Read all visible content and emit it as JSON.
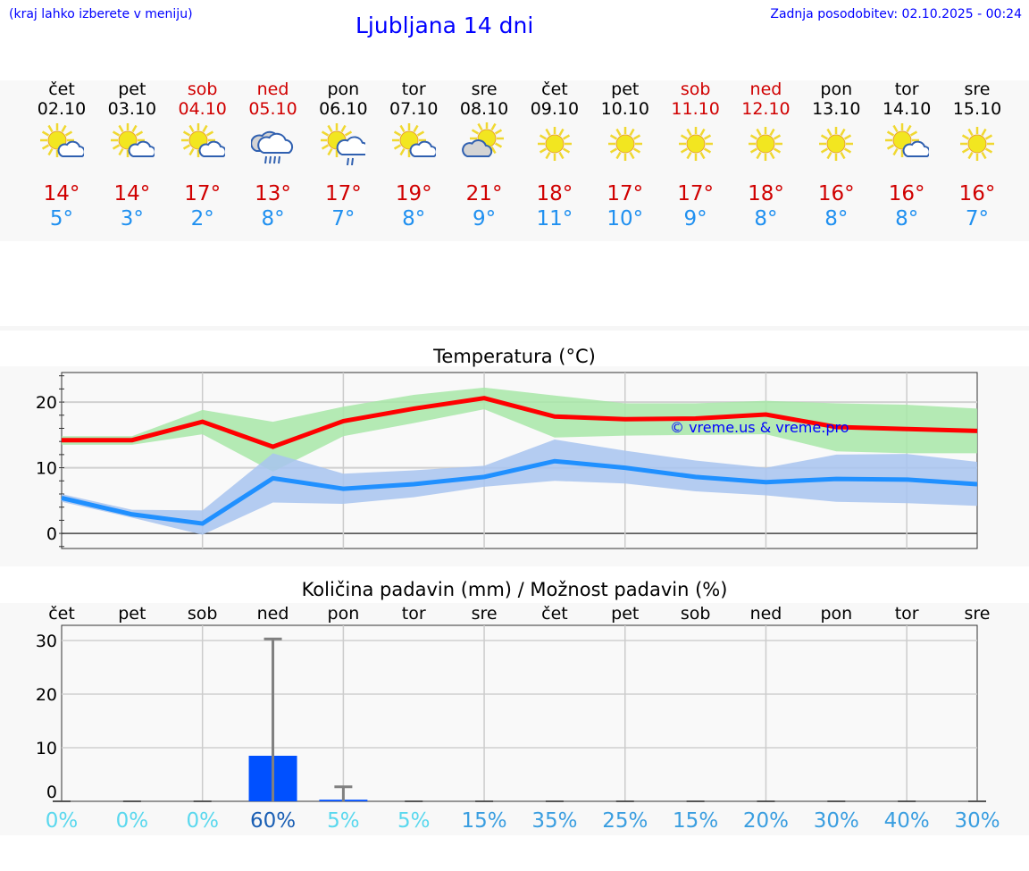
{
  "header": {
    "hint": "(kraj lahko izberete v meniju)",
    "title": "Ljubljana 14 dni",
    "updated": "Zadnja posodobitev: 02.10.2025 - 00:24"
  },
  "days": [
    {
      "name": "čet",
      "date": "02.10",
      "weekend": false,
      "icon": "sun-cloud",
      "max": "14°",
      "min": "5°"
    },
    {
      "name": "pet",
      "date": "03.10",
      "weekend": false,
      "icon": "sun-cloud",
      "max": "14°",
      "min": "3°"
    },
    {
      "name": "sob",
      "date": "04.10",
      "weekend": true,
      "icon": "sun-cloud",
      "max": "17°",
      "min": "2°"
    },
    {
      "name": "ned",
      "date": "05.10",
      "weekend": true,
      "icon": "rain-cloud",
      "max": "13°",
      "min": "8°"
    },
    {
      "name": "pon",
      "date": "06.10",
      "weekend": false,
      "icon": "sun-cloud-rain",
      "max": "17°",
      "min": "7°"
    },
    {
      "name": "tor",
      "date": "07.10",
      "weekend": false,
      "icon": "sun-cloud",
      "max": "19°",
      "min": "8°"
    },
    {
      "name": "sre",
      "date": "08.10",
      "weekend": false,
      "icon": "cloud-sun",
      "max": "21°",
      "min": "9°"
    },
    {
      "name": "čet",
      "date": "09.10",
      "weekend": false,
      "icon": "sun",
      "max": "18°",
      "min": "11°"
    },
    {
      "name": "pet",
      "date": "10.10",
      "weekend": false,
      "icon": "sun",
      "max": "17°",
      "min": "10°"
    },
    {
      "name": "sob",
      "date": "11.10",
      "weekend": true,
      "icon": "sun",
      "max": "17°",
      "min": "9°"
    },
    {
      "name": "ned",
      "date": "12.10",
      "weekend": true,
      "icon": "sun",
      "max": "18°",
      "min": "8°"
    },
    {
      "name": "pon",
      "date": "13.10",
      "weekend": false,
      "icon": "sun",
      "max": "16°",
      "min": "8°"
    },
    {
      "name": "tor",
      "date": "14.10",
      "weekend": false,
      "icon": "sun-cloud",
      "max": "16°",
      "min": "8°"
    },
    {
      "name": "sre",
      "date": "15.10",
      "weekend": false,
      "icon": "sun",
      "max": "16°",
      "min": "7°"
    }
  ],
  "chart_data": [
    {
      "type": "line",
      "title": "Temperatura (°C)",
      "ylim": [
        -2.3,
        24.5
      ],
      "yticks": [
        "0",
        "10",
        "20"
      ],
      "grid": true,
      "watermark": "© vreme.us & vreme.pro",
      "colors": {
        "max": "#ff0000",
        "min": "#2090ff",
        "max_band": "#a8e8a8",
        "min_band": "#a8c4f0"
      },
      "series": [
        {
          "key": "max",
          "values": [
            14.2,
            14.2,
            17.0,
            13.2,
            17.1,
            19.0,
            20.6,
            17.8,
            17.4,
            17.5,
            18.1,
            16.2,
            15.9,
            15.6
          ],
          "band_high": [
            14.8,
            14.8,
            18.8,
            17.0,
            19.3,
            21.1,
            22.2,
            21.0,
            19.8,
            19.8,
            20.2,
            19.8,
            19.6,
            19.0
          ],
          "band_low": [
            13.5,
            13.5,
            15.1,
            9.4,
            14.8,
            16.8,
            18.9,
            14.6,
            14.9,
            15.0,
            15.1,
            12.5,
            12.2,
            12.2
          ]
        },
        {
          "key": "min",
          "values": [
            5.4,
            2.9,
            1.5,
            8.4,
            6.8,
            7.5,
            8.6,
            11.0,
            10.0,
            8.6,
            7.8,
            8.3,
            8.2,
            7.5
          ],
          "band_high": [
            6.0,
            3.6,
            3.5,
            12.2,
            9.1,
            9.6,
            10.3,
            14.3,
            12.6,
            11.1,
            10.0,
            12.0,
            12.1,
            10.9
          ],
          "band_low": [
            4.8,
            2.4,
            -0.2,
            4.7,
            4.5,
            5.5,
            7.1,
            8.0,
            7.6,
            6.4,
            5.8,
            4.8,
            4.6,
            4.2
          ]
        }
      ]
    },
    {
      "type": "bar",
      "title": "Količina padavin (mm) / Možnost padavin (%)",
      "ylim": [
        -1.8,
        33
      ],
      "yticks": [
        "0",
        "10",
        "20",
        "30"
      ],
      "grid": true,
      "categories": [
        "čet",
        "pet",
        "sob",
        "ned",
        "pon",
        "tor",
        "sre",
        "čet",
        "pet",
        "sob",
        "ned",
        "pon",
        "tor",
        "sre"
      ],
      "values": [
        0,
        0,
        0,
        8.5,
        0.3,
        0,
        0,
        0,
        0,
        0,
        0,
        0,
        0,
        0
      ],
      "error_high": [
        0,
        0,
        0,
        30.3,
        2.7,
        0,
        0,
        0,
        0,
        0,
        0,
        0,
        0,
        0
      ],
      "probability": [
        "0%",
        "0%",
        "0%",
        "60%",
        "5%",
        "5%",
        "15%",
        "35%",
        "25%",
        "15%",
        "20%",
        "30%",
        "40%",
        "30%"
      ],
      "colors": {
        "bar": "#0050ff",
        "error": "#808080",
        "prob_low": "#5ad8ee",
        "prob_mid": "#3a9ee0",
        "prob_high": "#1a5fb4"
      }
    }
  ]
}
